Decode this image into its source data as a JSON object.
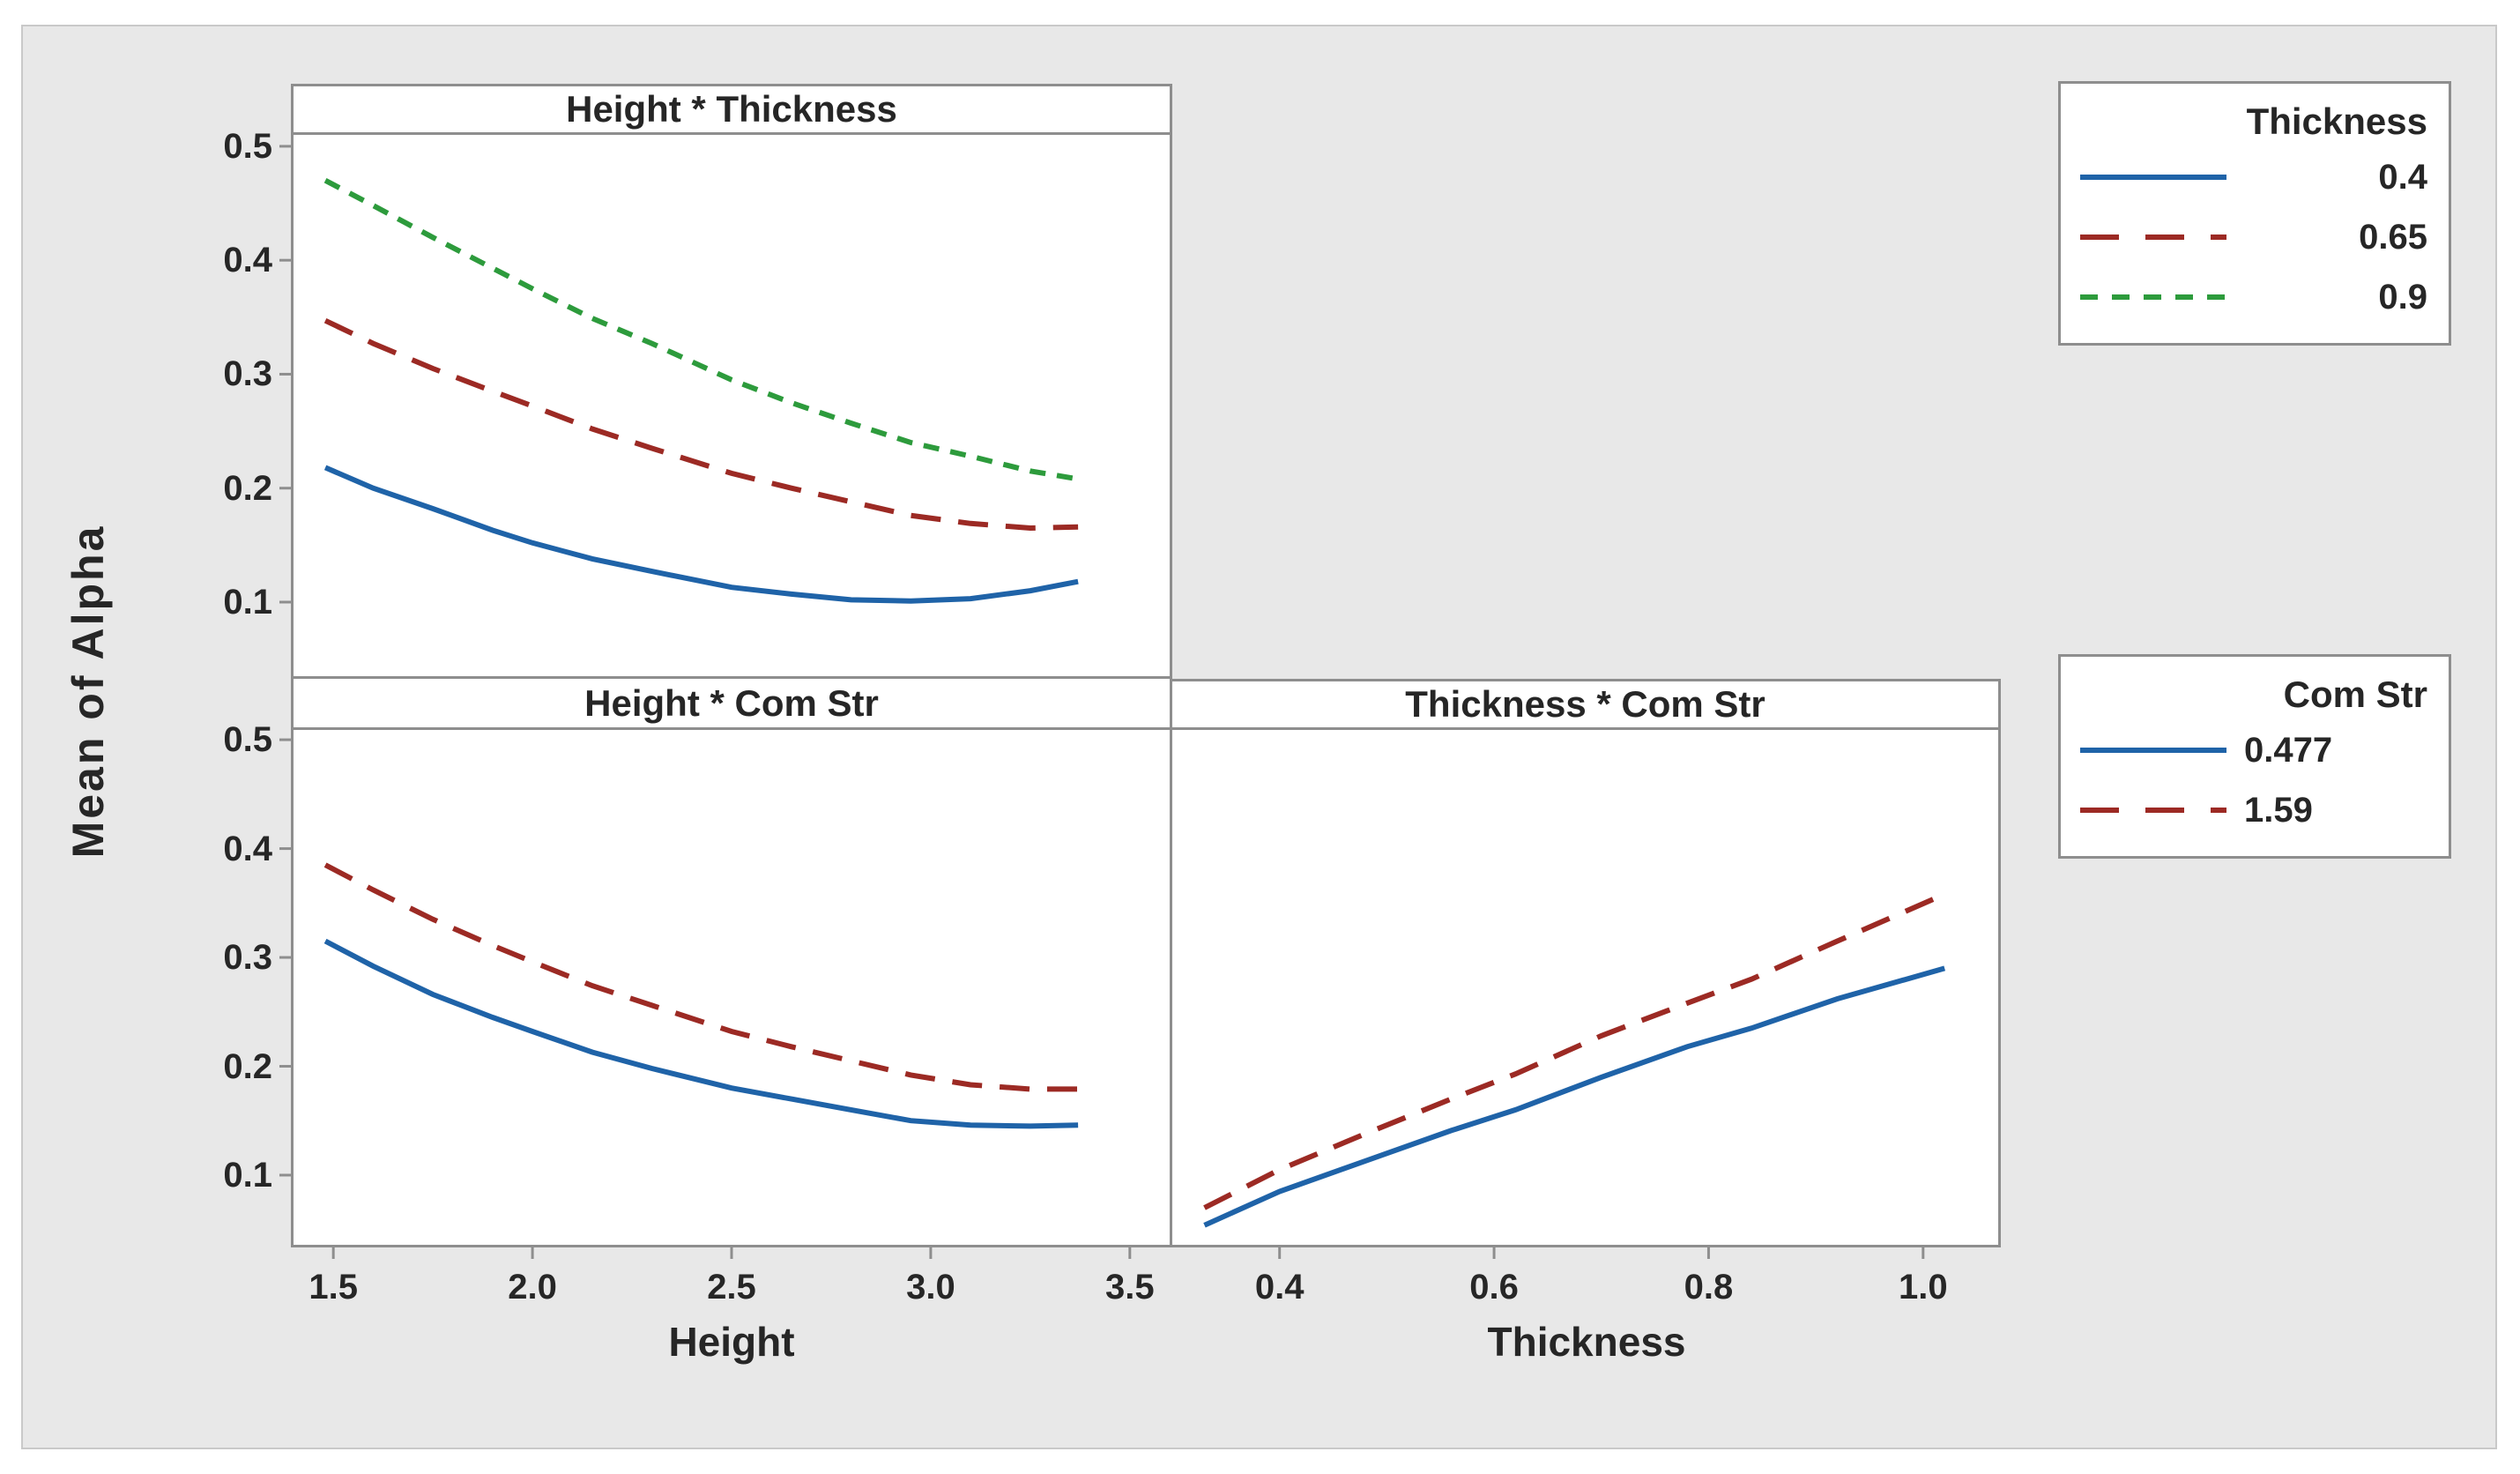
{
  "figure": {
    "y_axis_title": "Mean of Alpha",
    "background_color": "#e8e8e8",
    "panel_border_color": "#8e8e8e",
    "frame_border_color": "#c9c9c9",
    "text_color": "#262626"
  },
  "colors": {
    "blue": "#1f63a8",
    "red": "#9c2a24",
    "green": "#2d9b3c"
  },
  "legends": [
    {
      "title": "Thickness",
      "position": "top-right",
      "entries": [
        {
          "label": "0.4",
          "color": "#1f63a8",
          "dash": "none"
        },
        {
          "label": "0.65",
          "color": "#9c2a24",
          "dash": "44 30"
        },
        {
          "label": "0.9",
          "color": "#2d9b3c",
          "dash": "20 16"
        }
      ]
    },
    {
      "title": "Com Str",
      "position": "middle-right",
      "entries": [
        {
          "label": "0.477",
          "color": "#1f63a8",
          "dash": "none"
        },
        {
          "label": "1.59",
          "color": "#9c2a24",
          "dash": "44 30"
        }
      ]
    }
  ],
  "chart_data": [
    {
      "id": "height_thickness",
      "type": "line",
      "title": "Height * Thickness",
      "xlabel": "",
      "ylabel": "Mean of Alpha",
      "legend_var": "Thickness",
      "xlim": [
        1.4,
        3.6
      ],
      "ylim": [
        0.035,
        0.51
      ],
      "xticks": [
        "1.5",
        "2.0",
        "2.5",
        "3.0",
        "3.5"
      ],
      "yticks": [
        "0.1",
        "0.2",
        "0.3",
        "0.4",
        "0.5"
      ],
      "show_xticks": false,
      "show_xtick_labels": false,
      "show_yticks": true,
      "show_ytick_labels": true,
      "grid": false,
      "series": [
        {
          "name": "0.4",
          "color": "#1f63a8",
          "dash": "none",
          "points": [
            [
              1.48,
              0.218
            ],
            [
              1.6,
              0.2
            ],
            [
              1.75,
              0.182
            ],
            [
              1.9,
              0.163
            ],
            [
              2.0,
              0.152
            ],
            [
              2.15,
              0.138
            ],
            [
              2.3,
              0.127
            ],
            [
              2.5,
              0.113
            ],
            [
              2.65,
              0.107
            ],
            [
              2.8,
              0.102
            ],
            [
              2.95,
              0.101
            ],
            [
              3.1,
              0.103
            ],
            [
              3.25,
              0.11
            ],
            [
              3.37,
              0.118
            ]
          ]
        },
        {
          "name": "0.65",
          "color": "#9c2a24",
          "dash": "34 20",
          "points": [
            [
              1.48,
              0.347
            ],
            [
              1.6,
              0.327
            ],
            [
              1.75,
              0.305
            ],
            [
              1.9,
              0.285
            ],
            [
              2.0,
              0.272
            ],
            [
              2.15,
              0.252
            ],
            [
              2.3,
              0.235
            ],
            [
              2.5,
              0.213
            ],
            [
              2.65,
              0.2
            ],
            [
              2.8,
              0.188
            ],
            [
              2.95,
              0.176
            ],
            [
              3.1,
              0.169
            ],
            [
              3.25,
              0.165
            ],
            [
              3.37,
              0.166
            ]
          ]
        },
        {
          "name": "0.9",
          "color": "#2d9b3c",
          "dash": "18 13",
          "points": [
            [
              1.48,
              0.47
            ],
            [
              1.6,
              0.448
            ],
            [
              1.75,
              0.42
            ],
            [
              1.9,
              0.393
            ],
            [
              2.0,
              0.375
            ],
            [
              2.15,
              0.349
            ],
            [
              2.3,
              0.327
            ],
            [
              2.5,
              0.295
            ],
            [
              2.65,
              0.275
            ],
            [
              2.8,
              0.257
            ],
            [
              2.95,
              0.24
            ],
            [
              3.1,
              0.228
            ],
            [
              3.25,
              0.215
            ],
            [
              3.37,
              0.208
            ]
          ]
        }
      ]
    },
    {
      "id": "height_comstr",
      "type": "line",
      "title": "Height * Com Str",
      "xlabel": "Height",
      "ylabel": "Mean of Alpha",
      "legend_var": "Com Str",
      "xlim": [
        1.4,
        3.6
      ],
      "ylim": [
        0.036,
        0.509
      ],
      "xticks": [
        "1.5",
        "2.0",
        "2.5",
        "3.0",
        "3.5"
      ],
      "yticks": [
        "0.1",
        "0.2",
        "0.3",
        "0.4",
        "0.5"
      ],
      "show_xticks": true,
      "show_xtick_labels": true,
      "show_yticks": true,
      "show_ytick_labels": true,
      "grid": false,
      "series": [
        {
          "name": "0.477",
          "color": "#1f63a8",
          "dash": "none",
          "points": [
            [
              1.48,
              0.315
            ],
            [
              1.6,
              0.292
            ],
            [
              1.75,
              0.266
            ],
            [
              1.9,
              0.245
            ],
            [
              2.0,
              0.232
            ],
            [
              2.15,
              0.213
            ],
            [
              2.3,
              0.198
            ],
            [
              2.5,
              0.18
            ],
            [
              2.65,
              0.17
            ],
            [
              2.8,
              0.16
            ],
            [
              2.95,
              0.15
            ],
            [
              3.1,
              0.146
            ],
            [
              3.25,
              0.145
            ],
            [
              3.37,
              0.146
            ]
          ]
        },
        {
          "name": "1.59",
          "color": "#9c2a24",
          "dash": "34 20",
          "points": [
            [
              1.48,
              0.385
            ],
            [
              1.6,
              0.362
            ],
            [
              1.75,
              0.335
            ],
            [
              1.9,
              0.311
            ],
            [
              2.0,
              0.296
            ],
            [
              2.15,
              0.274
            ],
            [
              2.3,
              0.256
            ],
            [
              2.5,
              0.232
            ],
            [
              2.65,
              0.218
            ],
            [
              2.8,
              0.205
            ],
            [
              2.95,
              0.192
            ],
            [
              3.1,
              0.183
            ],
            [
              3.25,
              0.179
            ],
            [
              3.37,
              0.179
            ]
          ]
        }
      ]
    },
    {
      "id": "thickness_comstr",
      "type": "line",
      "title": "Thickness * Com Str",
      "xlabel": "Thickness",
      "ylabel": "Mean of Alpha",
      "legend_var": "Com Str",
      "xlim": [
        0.3,
        1.07
      ],
      "ylim": [
        0.036,
        0.509
      ],
      "xticks": [
        "0.4",
        "0.6",
        "0.8",
        "1.0"
      ],
      "yticks": [
        "0.1",
        "0.2",
        "0.3",
        "0.4",
        "0.5"
      ],
      "show_xticks": true,
      "show_xtick_labels": true,
      "show_yticks": false,
      "show_ytick_labels": false,
      "grid": false,
      "series": [
        {
          "name": "0.477",
          "color": "#1f63a8",
          "dash": "none",
          "points": [
            [
              0.33,
              0.054
            ],
            [
              0.4,
              0.085
            ],
            [
              0.48,
              0.113
            ],
            [
              0.56,
              0.141
            ],
            [
              0.62,
              0.16
            ],
            [
              0.7,
              0.19
            ],
            [
              0.78,
              0.218
            ],
            [
              0.84,
              0.235
            ],
            [
              0.92,
              0.262
            ],
            [
              1.02,
              0.29
            ]
          ]
        },
        {
          "name": "1.59",
          "color": "#9c2a24",
          "dash": "34 20",
          "points": [
            [
              0.33,
              0.07
            ],
            [
              0.4,
              0.105
            ],
            [
              0.48,
              0.138
            ],
            [
              0.56,
              0.17
            ],
            [
              0.62,
              0.193
            ],
            [
              0.7,
              0.228
            ],
            [
              0.78,
              0.258
            ],
            [
              0.84,
              0.28
            ],
            [
              0.92,
              0.315
            ],
            [
              1.02,
              0.358
            ]
          ]
        }
      ]
    }
  ]
}
